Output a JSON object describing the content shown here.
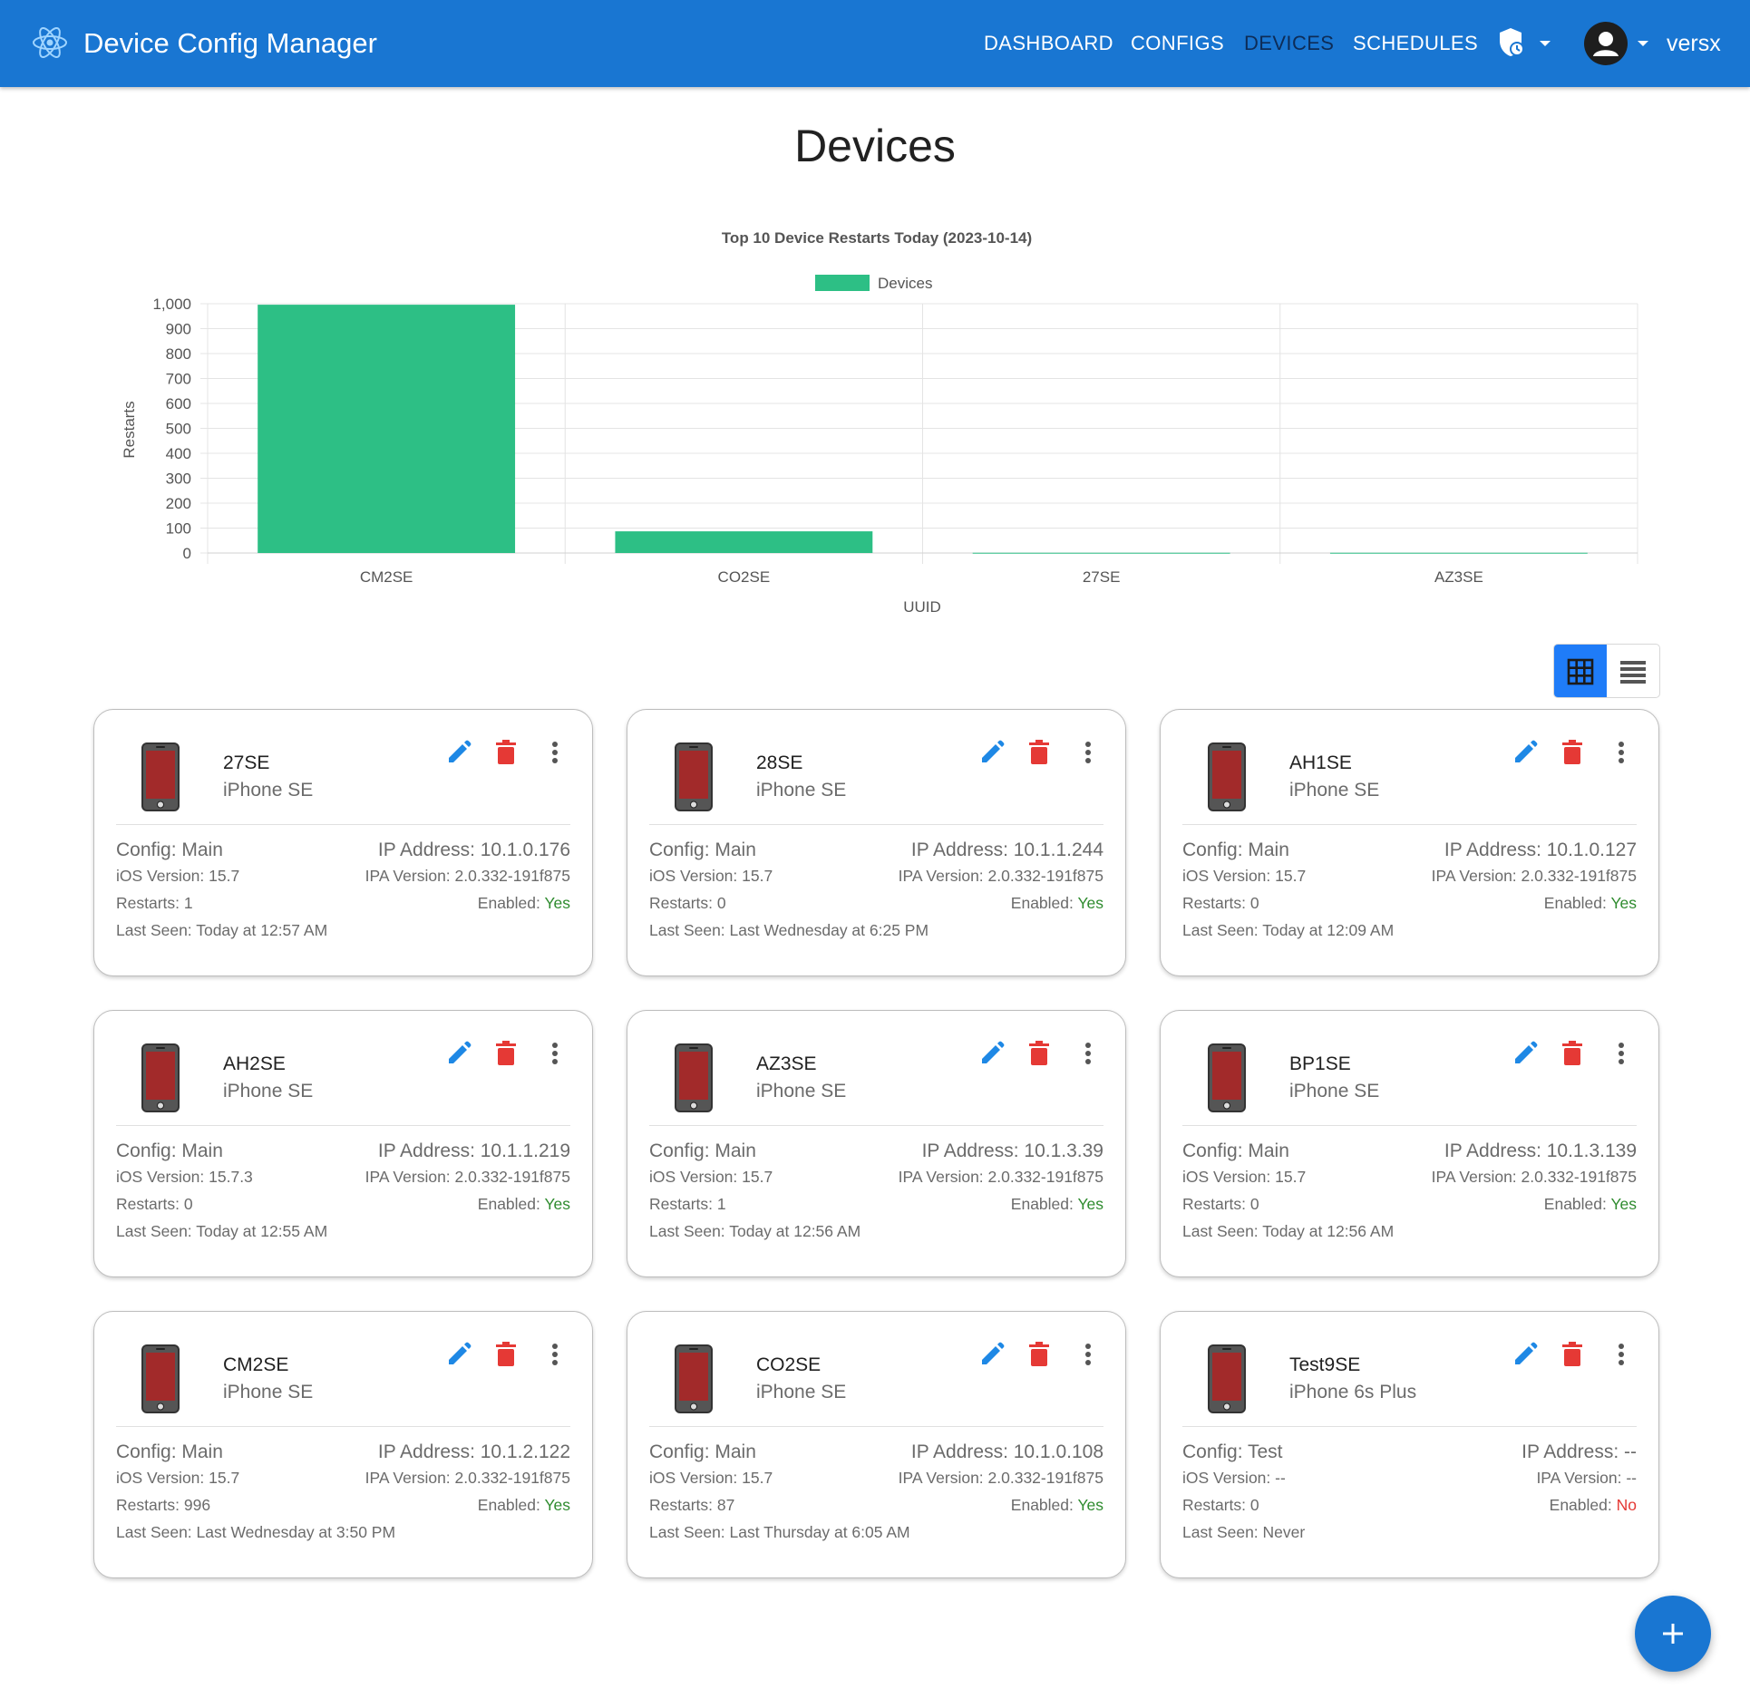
{
  "app": {
    "title": "Device Config Manager",
    "nav": [
      "DASHBOARD",
      "CONFIGS",
      "DEVICES",
      "SCHEDULES"
    ],
    "active_nav": "DEVICES",
    "username": "versx"
  },
  "page": {
    "title": "Devices"
  },
  "chart_data": {
    "type": "bar",
    "title": "Top 10 Device Restarts Today (2023-10-14)",
    "legend": "Devices",
    "legend_position": "top-center",
    "categories": [
      "CM2SE",
      "CO2SE",
      "27SE",
      "AZ3SE"
    ],
    "values": [
      996,
      87,
      1,
      1
    ],
    "xlabel": "UUID",
    "ylabel": "Restarts",
    "ylim": [
      0,
      1000
    ],
    "yticks": [
      "0",
      "100",
      "200",
      "300",
      "400",
      "500",
      "600",
      "700",
      "800",
      "900",
      "1,000"
    ],
    "grid": true,
    "color": "#2dbf85"
  },
  "colors": {
    "primary": "#1976d2",
    "edit": "#1e88e5",
    "delete": "#e53935",
    "toggle_active": "#1f7cf8",
    "phone_screen": "#a22a2a"
  },
  "devices": [
    {
      "name": "27SE",
      "model": "iPhone SE",
      "config": "Config: Main",
      "ip": "IP Address: 10.1.0.176",
      "ios": "iOS Version: 15.7",
      "ipa": "IPA Version: 2.0.332-191f875",
      "restarts": "Restarts: 1",
      "enabled_label": "Enabled:",
      "enabled": "Yes",
      "last_seen": "Last Seen: Today at 12:57 AM"
    },
    {
      "name": "28SE",
      "model": "iPhone SE",
      "config": "Config: Main",
      "ip": "IP Address: 10.1.1.244",
      "ios": "iOS Version: 15.7",
      "ipa": "IPA Version: 2.0.332-191f875",
      "restarts": "Restarts: 0",
      "enabled_label": "Enabled:",
      "enabled": "Yes",
      "last_seen": "Last Seen: Last Wednesday at 6:25 PM"
    },
    {
      "name": "AH1SE",
      "model": "iPhone SE",
      "config": "Config: Main",
      "ip": "IP Address: 10.1.0.127",
      "ios": "iOS Version: 15.7",
      "ipa": "IPA Version: 2.0.332-191f875",
      "restarts": "Restarts: 0",
      "enabled_label": "Enabled:",
      "enabled": "Yes",
      "last_seen": "Last Seen: Today at 12:09 AM"
    },
    {
      "name": "AH2SE",
      "model": "iPhone SE",
      "config": "Config: Main",
      "ip": "IP Address: 10.1.1.219",
      "ios": "iOS Version: 15.7.3",
      "ipa": "IPA Version: 2.0.332-191f875",
      "restarts": "Restarts: 0",
      "enabled_label": "Enabled:",
      "enabled": "Yes",
      "last_seen": "Last Seen: Today at 12:55 AM"
    },
    {
      "name": "AZ3SE",
      "model": "iPhone SE",
      "config": "Config: Main",
      "ip": "IP Address: 10.1.3.39",
      "ios": "iOS Version: 15.7",
      "ipa": "IPA Version: 2.0.332-191f875",
      "restarts": "Restarts: 1",
      "enabled_label": "Enabled:",
      "enabled": "Yes",
      "last_seen": "Last Seen: Today at 12:56 AM"
    },
    {
      "name": "BP1SE",
      "model": "iPhone SE",
      "config": "Config: Main",
      "ip": "IP Address: 10.1.3.139",
      "ios": "iOS Version: 15.7",
      "ipa": "IPA Version: 2.0.332-191f875",
      "restarts": "Restarts: 0",
      "enabled_label": "Enabled:",
      "enabled": "Yes",
      "last_seen": "Last Seen: Today at 12:56 AM"
    },
    {
      "name": "CM2SE",
      "model": "iPhone SE",
      "config": "Config: Main",
      "ip": "IP Address: 10.1.2.122",
      "ios": "iOS Version: 15.7",
      "ipa": "IPA Version: 2.0.332-191f875",
      "restarts": "Restarts: 996",
      "enabled_label": "Enabled:",
      "enabled": "Yes",
      "last_seen": "Last Seen: Last Wednesday at 3:50 PM"
    },
    {
      "name": "CO2SE",
      "model": "iPhone SE",
      "config": "Config: Main",
      "ip": "IP Address: 10.1.0.108",
      "ios": "iOS Version: 15.7",
      "ipa": "IPA Version: 2.0.332-191f875",
      "restarts": "Restarts: 87",
      "enabled_label": "Enabled:",
      "enabled": "Yes",
      "last_seen": "Last Seen: Last Thursday at 6:05 AM"
    },
    {
      "name": "Test9SE",
      "model": "iPhone 6s Plus",
      "config": "Config: Test",
      "ip": "IP Address: --",
      "ios": "iOS Version: --",
      "ipa": "IPA Version: --",
      "restarts": "Restarts: 0",
      "enabled_label": "Enabled:",
      "enabled": "No",
      "last_seen": "Last Seen: Never"
    }
  ]
}
